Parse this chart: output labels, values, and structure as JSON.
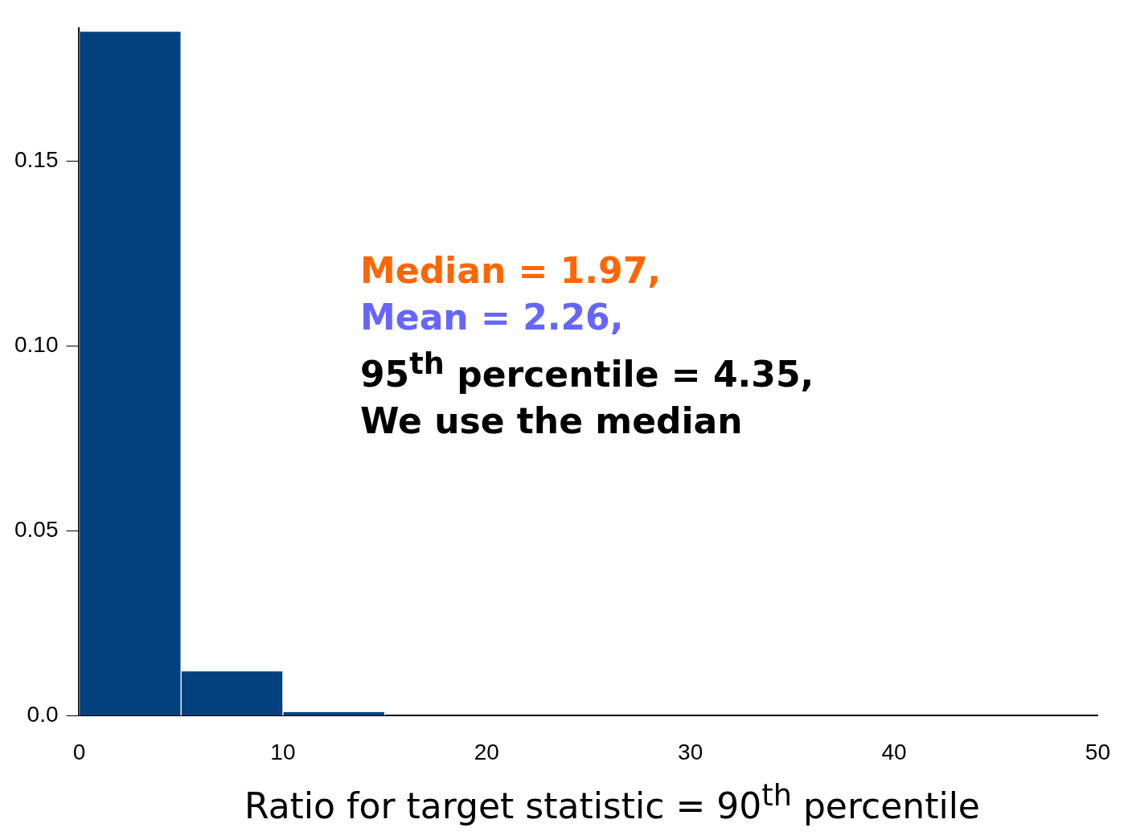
{
  "chart_data": {
    "type": "histogram",
    "xlabel": "Ratio for target statistic = 90$^{th}$ percentile",
    "bins": [
      0,
      5,
      10,
      15,
      20,
      25,
      30,
      35
    ],
    "values": [
      0.185,
      0.012,
      0.001,
      0,
      0,
      0,
      0
    ],
    "color": "#02407f",
    "xlim": [
      0,
      50
    ],
    "xticks": [
      0,
      10,
      20,
      30,
      40,
      50
    ],
    "ylim": [
      0,
      0.186
    ],
    "yticks": [
      {
        "value": 0,
        "label": "0.0"
      },
      0.05,
      {
        "value": 0.1,
        "label": "0.10"
      },
      0.15
    ],
    "grid": false,
    "legend": false,
    "annotations": [
      "Median = 1.97,",
      "Mean = 2.26,",
      "95$^{th}$ percentile = 4.35,",
      "We use the median"
    ]
  }
}
